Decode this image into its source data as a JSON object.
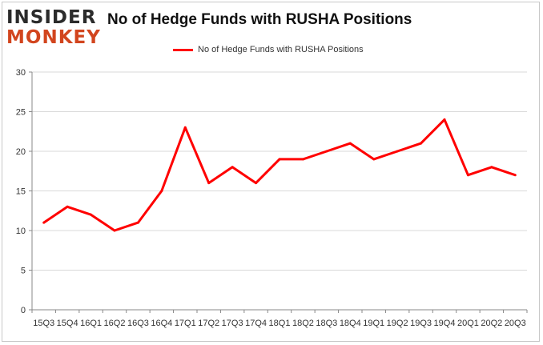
{
  "logo": {
    "line1": "INSIDER",
    "line2": "MONKEY"
  },
  "chart_data": {
    "type": "line",
    "title": "No of Hedge Funds with RUSHA Positions",
    "xlabel": "",
    "ylabel": "",
    "categories": [
      "15Q3",
      "15Q4",
      "16Q1",
      "16Q2",
      "16Q3",
      "16Q4",
      "17Q1",
      "17Q2",
      "17Q3",
      "17Q4",
      "18Q1",
      "18Q2",
      "18Q3",
      "18Q4",
      "19Q1",
      "19Q2",
      "19Q3",
      "19Q4",
      "20Q1",
      "20Q2",
      "20Q3"
    ],
    "series": [
      {
        "name": "No of Hedge Funds with RUSHA Positions",
        "color": "#ff0000",
        "values": [
          11,
          13,
          12,
          10,
          11,
          15,
          23,
          16,
          18,
          16,
          19,
          19,
          20,
          21,
          19,
          20,
          21,
          24,
          17,
          18,
          17
        ]
      }
    ],
    "ylim": [
      0,
      30
    ],
    "yticks": [
      0,
      5,
      10,
      15,
      20,
      25,
      30
    ],
    "grid": true,
    "legend": "top-center"
  }
}
